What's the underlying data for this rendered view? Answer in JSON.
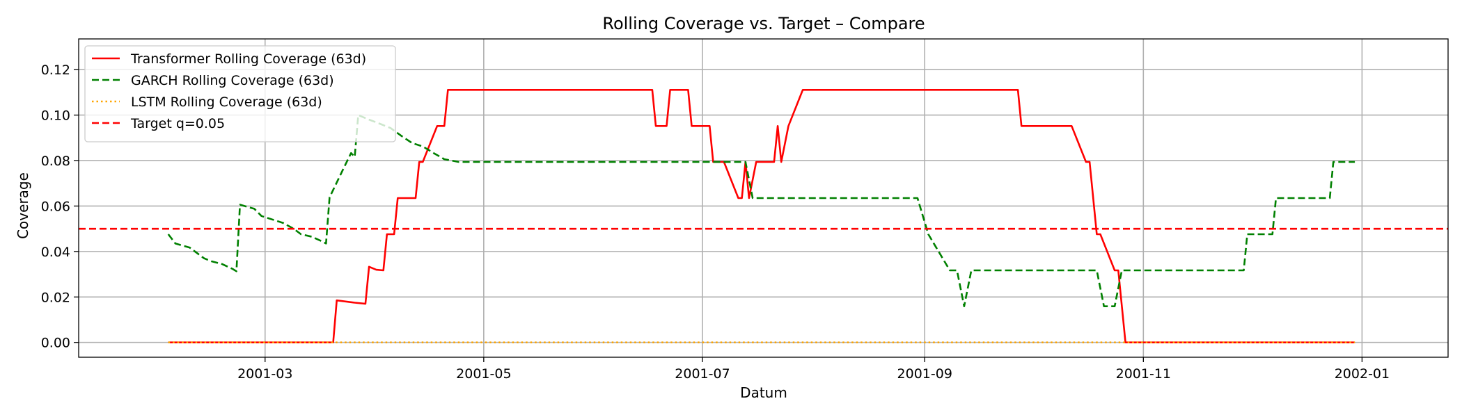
{
  "chart_data": {
    "type": "line",
    "title": "Rolling Coverage vs. Target – Compare",
    "xlabel": "Datum",
    "ylabel": "Coverage",
    "x_type": "date",
    "xlim": [
      "2001-01-08",
      "2002-01-25"
    ],
    "ylim": [
      -0.0065,
      0.1335
    ],
    "x_ticks": [
      "2001-03-01",
      "2001-05-01",
      "2001-07-01",
      "2001-09-01",
      "2001-11-01",
      "2002-01-01"
    ],
    "x_tick_labels": [
      "2001-03",
      "2001-05",
      "2001-07",
      "2001-09",
      "2001-11",
      "2002-01"
    ],
    "y_ticks": [
      0.0,
      0.02,
      0.04,
      0.06,
      0.08,
      0.1,
      0.12
    ],
    "y_tick_labels": [
      "0.00",
      "0.02",
      "0.04",
      "0.06",
      "0.08",
      "0.10",
      "0.12"
    ],
    "grid": true,
    "legend_position": "top-left",
    "series": [
      {
        "name": "Transformer Rolling Coverage (63d)",
        "color": "#ff0000",
        "style": "solid",
        "points": [
          [
            "2001-02-02",
            0.0
          ],
          [
            "2001-03-20",
            0.0
          ],
          [
            "2001-03-21",
            0.0185
          ],
          [
            "2001-03-26",
            0.0175
          ],
          [
            "2001-03-29",
            0.017
          ],
          [
            "2001-03-30",
            0.0333
          ],
          [
            "2001-04-01",
            0.032
          ],
          [
            "2001-04-03",
            0.0317
          ],
          [
            "2001-04-04",
            0.0476
          ],
          [
            "2001-04-06",
            0.0476
          ],
          [
            "2001-04-07",
            0.0635
          ],
          [
            "2001-04-12",
            0.0635
          ],
          [
            "2001-04-13",
            0.0794
          ],
          [
            "2001-04-14",
            0.0794
          ],
          [
            "2001-04-18",
            0.0952
          ],
          [
            "2001-04-20",
            0.0952
          ],
          [
            "2001-04-21",
            0.1111
          ],
          [
            "2001-06-17",
            0.1111
          ],
          [
            "2001-06-18",
            0.0952
          ],
          [
            "2001-06-21",
            0.0952
          ],
          [
            "2001-06-22",
            0.1111
          ],
          [
            "2001-06-27",
            0.1111
          ],
          [
            "2001-06-28",
            0.0952
          ],
          [
            "2001-07-03",
            0.0952
          ],
          [
            "2001-07-04",
            0.0794
          ],
          [
            "2001-07-07",
            0.0794
          ],
          [
            "2001-07-11",
            0.0635
          ],
          [
            "2001-07-12",
            0.0635
          ],
          [
            "2001-07-13",
            0.0794
          ],
          [
            "2001-07-14",
            0.0635
          ],
          [
            "2001-07-16",
            0.0794
          ],
          [
            "2001-07-21",
            0.0794
          ],
          [
            "2001-07-22",
            0.0952
          ],
          [
            "2001-07-23",
            0.0794
          ],
          [
            "2001-07-25",
            0.0952
          ],
          [
            "2001-07-29",
            0.1111
          ],
          [
            "2001-09-27",
            0.1111
          ],
          [
            "2001-09-28",
            0.0952
          ],
          [
            "2001-10-12",
            0.0952
          ],
          [
            "2001-10-16",
            0.0794
          ],
          [
            "2001-10-17",
            0.0794
          ],
          [
            "2001-10-19",
            0.0476
          ],
          [
            "2001-10-20",
            0.0476
          ],
          [
            "2001-10-24",
            0.0317
          ],
          [
            "2001-10-25",
            0.0317
          ],
          [
            "2001-10-27",
            0.0
          ],
          [
            "2001-12-30",
            0.0
          ]
        ]
      },
      {
        "name": "GARCH Rolling Coverage (63d)",
        "color": "#008000",
        "style": "dashed",
        "points": [
          [
            "2001-02-02",
            0.0476
          ],
          [
            "2001-02-04",
            0.0435
          ],
          [
            "2001-02-08",
            0.0417
          ],
          [
            "2001-02-12",
            0.037
          ],
          [
            "2001-02-14",
            0.0357
          ],
          [
            "2001-02-17",
            0.0345
          ],
          [
            "2001-02-20",
            0.0323
          ],
          [
            "2001-02-21",
            0.0313
          ],
          [
            "2001-02-22",
            0.0606
          ],
          [
            "2001-02-26",
            0.0588
          ],
          [
            "2001-02-28",
            0.0556
          ],
          [
            "2001-03-03",
            0.0541
          ],
          [
            "2001-03-06",
            0.0526
          ],
          [
            "2001-03-09",
            0.05
          ],
          [
            "2001-03-11",
            0.0476
          ],
          [
            "2001-03-14",
            0.0465
          ],
          [
            "2001-03-17",
            0.0444
          ],
          [
            "2001-03-18",
            0.0435
          ],
          [
            "2001-03-19",
            0.0638
          ],
          [
            "2001-03-23",
            0.0769
          ],
          [
            "2001-03-25",
            0.0833
          ],
          [
            "2001-03-26",
            0.0816
          ],
          [
            "2001-03-27",
            0.1
          ],
          [
            "2001-03-30",
            0.098
          ],
          [
            "2001-04-02",
            0.0962
          ],
          [
            "2001-04-05",
            0.0943
          ],
          [
            "2001-04-08",
            0.0909
          ],
          [
            "2001-04-11",
            0.0877
          ],
          [
            "2001-04-14",
            0.0862
          ],
          [
            "2001-04-17",
            0.0833
          ],
          [
            "2001-04-20",
            0.0806
          ],
          [
            "2001-04-24",
            0.0794
          ],
          [
            "2001-07-13",
            0.0794
          ],
          [
            "2001-07-15",
            0.0635
          ],
          [
            "2001-08-30",
            0.0635
          ],
          [
            "2001-09-02",
            0.0476
          ],
          [
            "2001-09-08",
            0.0317
          ],
          [
            "2001-09-10",
            0.0317
          ],
          [
            "2001-09-12",
            0.0159
          ],
          [
            "2001-09-14",
            0.0317
          ],
          [
            "2001-10-19",
            0.0317
          ],
          [
            "2001-10-21",
            0.0159
          ],
          [
            "2001-10-24",
            0.0159
          ],
          [
            "2001-10-26",
            0.0317
          ],
          [
            "2001-11-29",
            0.0317
          ],
          [
            "2001-11-30",
            0.0476
          ],
          [
            "2001-12-07",
            0.0476
          ],
          [
            "2001-12-08",
            0.0635
          ],
          [
            "2001-12-23",
            0.0635
          ],
          [
            "2001-12-24",
            0.0794
          ],
          [
            "2001-12-30",
            0.0794
          ]
        ]
      },
      {
        "name": "LSTM Rolling Coverage (63d)",
        "color": "#ffa500",
        "style": "dotted",
        "points": [
          [
            "2001-02-02",
            0.0
          ],
          [
            "2001-12-30",
            0.0
          ]
        ]
      },
      {
        "name": "Target q=0.05",
        "color": "#ff0000",
        "style": "dashed",
        "hline": 0.05
      }
    ]
  }
}
